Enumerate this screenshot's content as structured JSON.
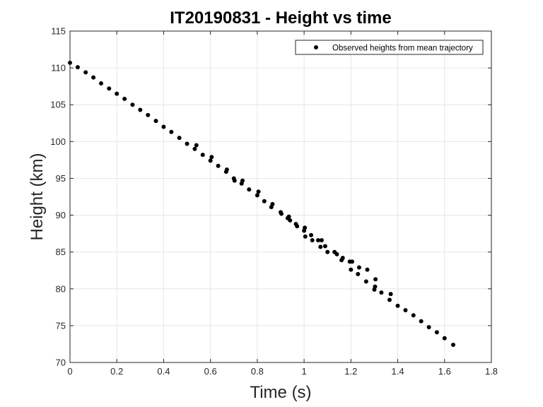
{
  "chart_data": {
    "type": "scatter",
    "title": "IT20190831 - Height vs time",
    "xlabel": "Time (s)",
    "ylabel": "Height (km)",
    "xlim": [
      0,
      1.8
    ],
    "ylim": [
      70,
      115
    ],
    "xticks": [
      "0",
      "0.2",
      "0.4",
      "0.6",
      "0.8",
      "1",
      "1.2",
      "1.4",
      "1.6",
      "1.8"
    ],
    "yticks": [
      "70",
      "75",
      "80",
      "85",
      "90",
      "95",
      "100",
      "105",
      "110",
      "115"
    ],
    "grid": true,
    "legend_position": "top-right",
    "marker_color": "#000000",
    "series": [
      {
        "name": "Observed heights from mean trajectory",
        "x": [
          0.0,
          0.033,
          0.067,
          0.1,
          0.133,
          0.167,
          0.2,
          0.233,
          0.267,
          0.3,
          0.333,
          0.367,
          0.4,
          0.433,
          0.467,
          0.5,
          0.533,
          0.54,
          0.567,
          0.6,
          0.605,
          0.633,
          0.667,
          0.67,
          0.7,
          0.703,
          0.733,
          0.737,
          0.765,
          0.8,
          0.805,
          0.83,
          0.86,
          0.865,
          0.9,
          0.903,
          0.93,
          0.935,
          0.94,
          0.965,
          0.97,
          1.0,
          1.003,
          1.005,
          1.03,
          1.035,
          1.06,
          1.07,
          1.075,
          1.09,
          1.1,
          1.13,
          1.14,
          1.16,
          1.165,
          1.195,
          1.2,
          1.205,
          1.23,
          1.235,
          1.265,
          1.27,
          1.3,
          1.303,
          1.305,
          1.33,
          1.365,
          1.37,
          1.4,
          1.433,
          1.467,
          1.5,
          1.533,
          1.567,
          1.6,
          1.637
        ],
        "y": [
          110.7,
          110.1,
          109.4,
          108.7,
          107.9,
          107.2,
          106.5,
          105.8,
          105.0,
          104.3,
          103.6,
          102.8,
          102.0,
          101.3,
          100.5,
          99.7,
          99.0,
          99.5,
          98.2,
          97.4,
          97.9,
          96.7,
          95.9,
          96.2,
          95.0,
          94.7,
          94.3,
          94.7,
          93.5,
          92.7,
          93.2,
          91.9,
          91.1,
          91.5,
          90.4,
          90.2,
          89.6,
          89.8,
          89.3,
          88.8,
          88.5,
          87.9,
          88.3,
          87.1,
          87.3,
          86.6,
          86.6,
          85.7,
          86.6,
          85.8,
          85.0,
          85.0,
          84.7,
          83.9,
          84.2,
          83.7,
          82.6,
          83.7,
          82.0,
          82.9,
          81.0,
          82.6,
          79.9,
          80.3,
          81.3,
          79.5,
          78.5,
          79.3,
          77.7,
          77.1,
          76.4,
          75.6,
          74.8,
          74.1,
          73.3,
          72.4
        ]
      }
    ]
  }
}
